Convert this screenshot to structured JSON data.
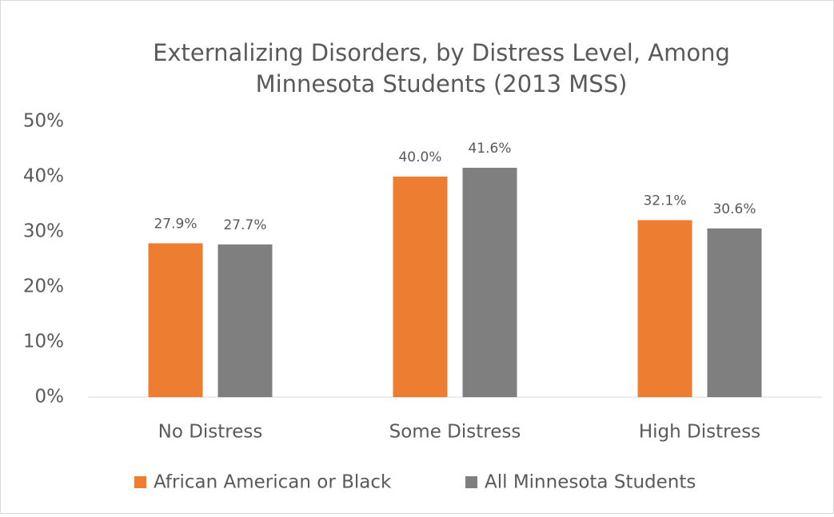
{
  "chart_data": {
    "type": "bar",
    "title": [
      "Externalizing Disorders, by Distress Level, Among",
      "Minnesota Students (2013 MSS)"
    ],
    "categories": [
      "No Distress",
      "Some Distress",
      "High Distress"
    ],
    "series": [
      {
        "name": "African American or Black",
        "color": "#ed7d31",
        "values": [
          27.9,
          40.0,
          32.1
        ],
        "value_labels": [
          "27.9%",
          "40.0%",
          "32.1%"
        ]
      },
      {
        "name": "All Minnesota Students",
        "color": "#7f7f7f",
        "values": [
          27.7,
          41.6,
          30.6
        ],
        "value_labels": [
          "27.7%",
          "41.6%",
          "30.6%"
        ]
      }
    ],
    "ylim": [
      0,
      50
    ],
    "yticks": [
      {
        "value": 0,
        "label": "0%"
      },
      {
        "value": 10,
        "label": "10%"
      },
      {
        "value": 20,
        "label": "20%"
      },
      {
        "value": 30,
        "label": "30%"
      },
      {
        "value": 40,
        "label": "40%"
      },
      {
        "value": 50,
        "label": "50%"
      }
    ],
    "grid": false,
    "legend": "bottom"
  }
}
